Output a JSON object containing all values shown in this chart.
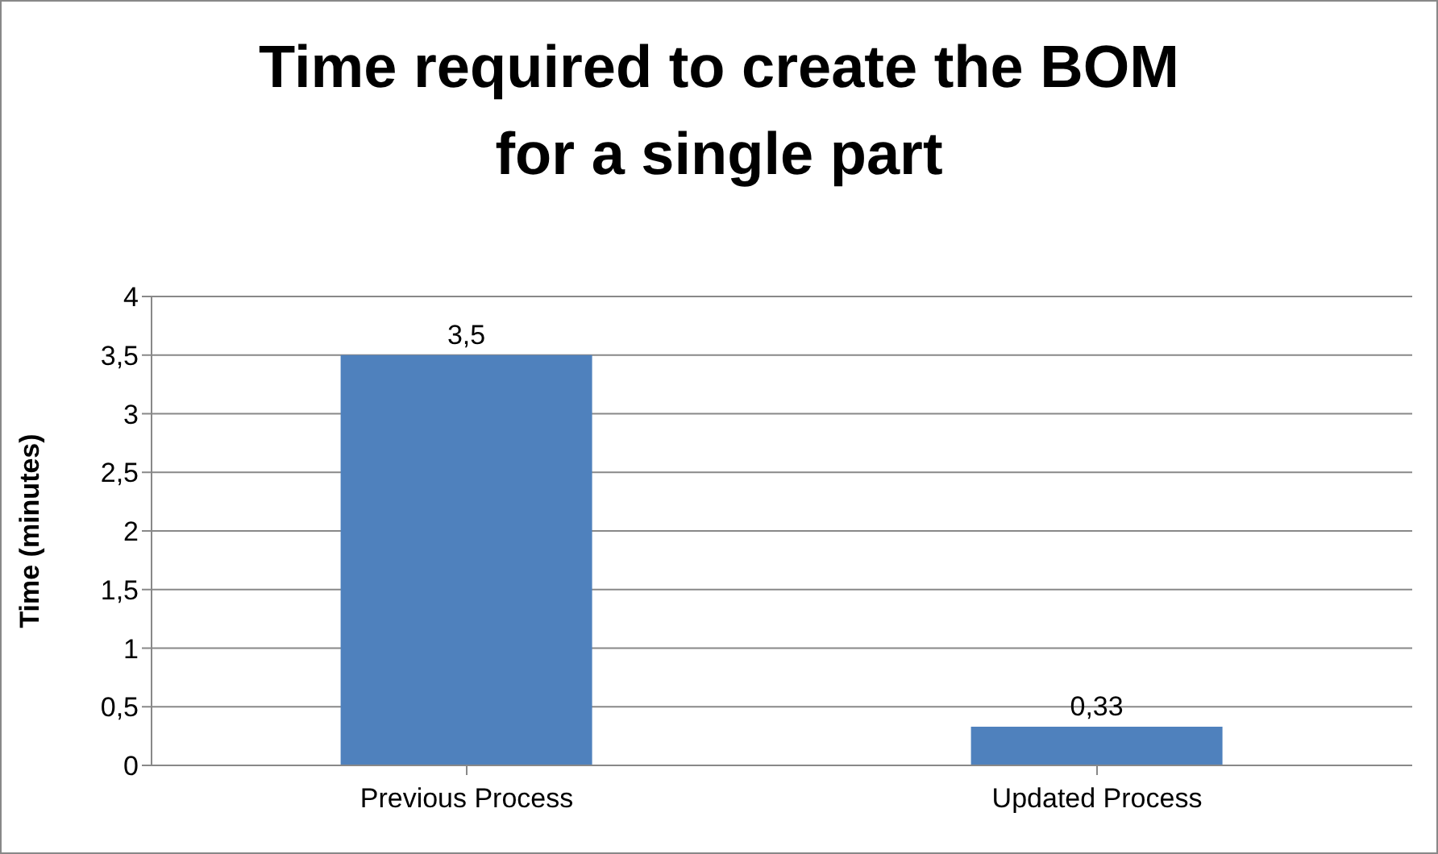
{
  "chart_data": {
    "type": "bar",
    "title": "Time required to create the BOM for a single part",
    "ylabel": "Time (minutes)",
    "categories": [
      "Previous Process",
      "Updated Process"
    ],
    "values": [
      3.5,
      0.33
    ],
    "value_labels": [
      "3,5",
      "0,33"
    ],
    "color": "#4f81bd",
    "ylim": [
      0,
      4
    ],
    "yticks": [
      0,
      {
        "value": 0.5,
        "label": "0,5"
      },
      1,
      {
        "value": 1.5,
        "label": "1,5"
      },
      2,
      {
        "value": 2.5,
        "label": "2,5"
      },
      3,
      {
        "value": 3.5,
        "label": "3,5"
      },
      4
    ],
    "grid": "y",
    "legend": false
  }
}
